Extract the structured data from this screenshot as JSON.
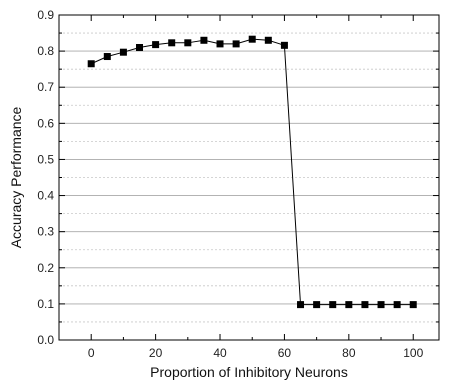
{
  "chart_data": {
    "type": "line",
    "xlabel": "Proportion of Inhibitory Neurons",
    "ylabel": "Accuracy Performance",
    "xlim": [
      -10,
      108
    ],
    "ylim": [
      0,
      0.9
    ],
    "x_ticks": [
      0,
      20,
      40,
      60,
      80,
      100
    ],
    "y_ticks": [
      0.0,
      0.1,
      0.2,
      0.3,
      0.4,
      0.5,
      0.6,
      0.7,
      0.8,
      0.9
    ],
    "x_tick_labels": [
      "0",
      "20",
      "40",
      "60",
      "80",
      "100"
    ],
    "y_tick_labels": [
      "0.0",
      "0.1",
      "0.2",
      "0.3",
      "0.4",
      "0.5",
      "0.6",
      "0.7",
      "0.8",
      "0.9"
    ],
    "grid": "horizontal",
    "marker": "square",
    "series": [
      {
        "x": [
          0,
          5,
          10,
          15,
          20,
          25,
          30,
          35,
          40,
          45,
          50,
          55,
          60,
          65,
          70,
          75,
          80,
          85,
          90,
          95,
          100
        ],
        "values": [
          0.765,
          0.785,
          0.797,
          0.81,
          0.818,
          0.823,
          0.823,
          0.83,
          0.82,
          0.82,
          0.833,
          0.83,
          0.816,
          0.098,
          0.098,
          0.098,
          0.098,
          0.098,
          0.098,
          0.098,
          0.098
        ]
      }
    ],
    "colors": {
      "series": "#000000",
      "grid_major": "#a8a8a8",
      "grid_minor": "#c8c8c8"
    }
  }
}
